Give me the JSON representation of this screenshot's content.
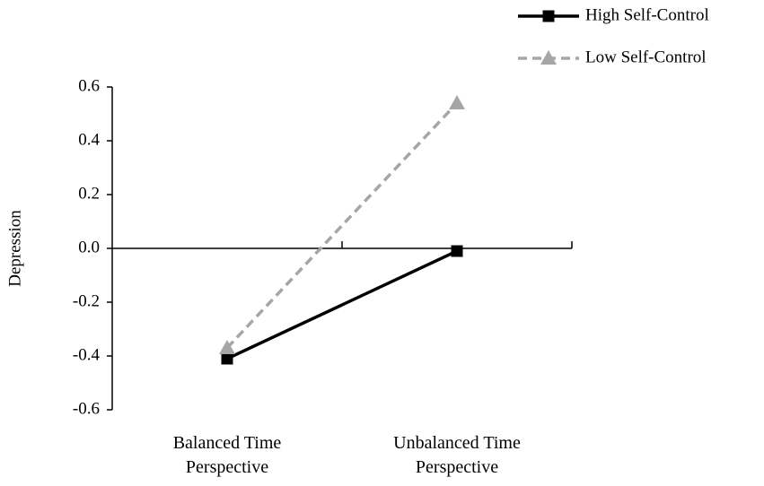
{
  "chart_data": {
    "type": "line",
    "y_label": "Depression",
    "categories": [
      "Balanced Time Perspective",
      "Unbalanced Time Perspective"
    ],
    "series": [
      {
        "name": "High Self-Control",
        "color": "#000000",
        "dashed": false,
        "marker": "square",
        "values": [
          -0.41,
          -0.01
        ]
      },
      {
        "name": "Low Self-Control",
        "color": "#a6a6a6",
        "dashed": true,
        "marker": "triangle",
        "values": [
          -0.37,
          0.54
        ]
      }
    ],
    "ylim": [
      -0.6,
      0.6
    ],
    "yticks": [
      0.6,
      0.4,
      0.2,
      {
        "value": 0,
        "label": "0.0"
      },
      -0.2,
      -0.4,
      -0.6
    ],
    "legend": "top-right"
  }
}
